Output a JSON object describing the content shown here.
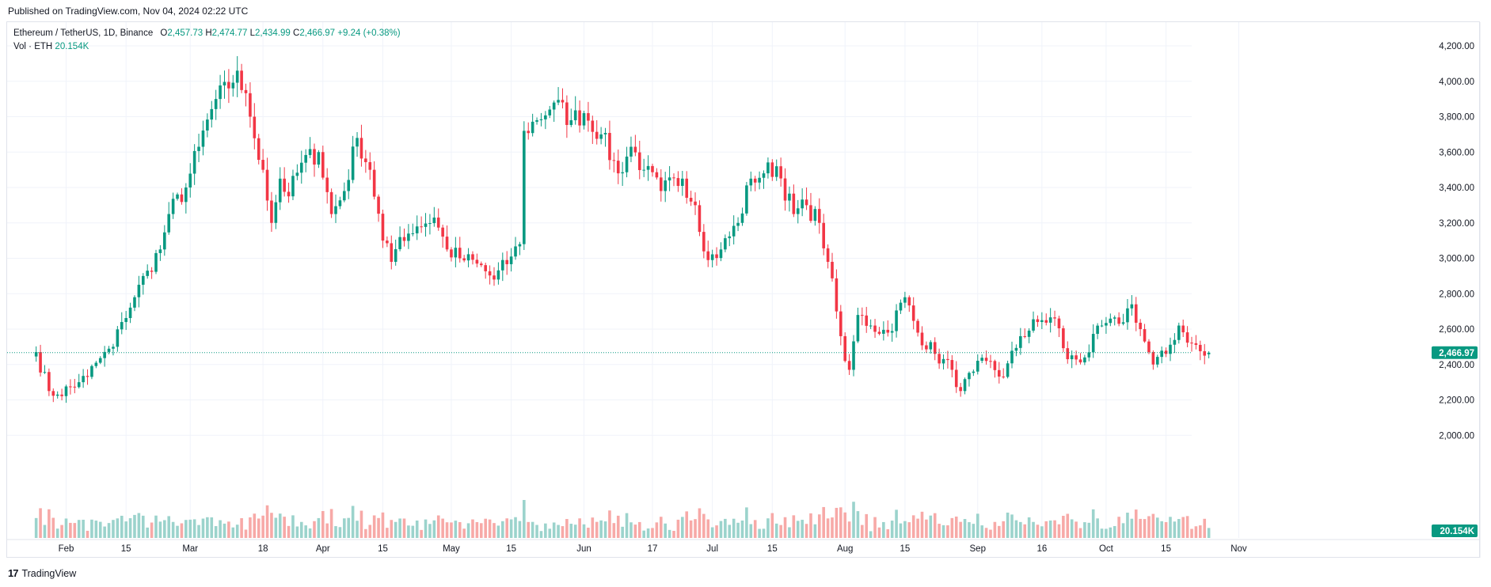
{
  "published": "Published on TradingView.com, Nov 04, 2024 02:22 UTC",
  "legend": {
    "symbol": "Ethereum / TetherUS, 1D, Binance",
    "o_label": "O",
    "o_value": "2,457.73",
    "h_label": "H",
    "h_value": "2,474.77",
    "l_label": "L",
    "l_value": "2,434.99",
    "c_label": "C",
    "c_value": "2,466.97",
    "change": "+9.24 (+0.38%)",
    "vol_label": "Vol · ETH",
    "vol_value": "20.154K"
  },
  "brand": {
    "logo_glyph": "17",
    "name": "TradingView"
  },
  "colors": {
    "up": "#089981",
    "down": "#f23645",
    "vol_up": "#9bd3cc",
    "vol_down": "#f7a9a7",
    "price_line": "#089981"
  },
  "chart_data": {
    "type": "candlestick",
    "pair": "ETH/USDT",
    "interval": "1D",
    "ylim": [
      1960,
      4260
    ],
    "y_ticks": [
      2000,
      2200,
      2400,
      2600,
      2800,
      3000,
      3200,
      3400,
      3600,
      3800,
      4000,
      4200
    ],
    "y_tick_labels": [
      "2,000.00",
      "2,200.00",
      "2,400.00",
      "2,600.00",
      "2,800.00",
      "3,000.00",
      "3,200.00",
      "3,400.00",
      "3,600.00",
      "3,800.00",
      "4,000.00",
      "4,200.00"
    ],
    "x_ticks": [
      {
        "day": 0,
        "label": "Feb"
      },
      {
        "day": 14,
        "label": "15"
      },
      {
        "day": 29,
        "label": "Mar"
      },
      {
        "day": 46,
        "label": "18"
      },
      {
        "day": 60,
        "label": "Apr"
      },
      {
        "day": 74,
        "label": "15"
      },
      {
        "day": 90,
        "label": "May"
      },
      {
        "day": 104,
        "label": "15"
      },
      {
        "day": 121,
        "label": "Jun"
      },
      {
        "day": 137,
        "label": "17"
      },
      {
        "day": 151,
        "label": "Jul"
      },
      {
        "day": 165,
        "label": "15"
      },
      {
        "day": 182,
        "label": "Aug"
      },
      {
        "day": 196,
        "label": "15"
      },
      {
        "day": 213,
        "label": "Sep"
      },
      {
        "day": 228,
        "label": "16"
      },
      {
        "day": 243,
        "label": "Oct"
      },
      {
        "day": 257,
        "label": "15"
      },
      {
        "day": 274,
        "label": "Nov"
      }
    ],
    "last_price": 2466.97,
    "last_price_label": "2,466.97",
    "last_volume_label": "20.154K",
    "anchors": [
      {
        "day": -7,
        "close": 2470
      },
      {
        "day": -4,
        "close": 2250
      },
      {
        "day": -2,
        "close": 2230
      },
      {
        "day": 3,
        "close": 2300
      },
      {
        "day": 5,
        "close": 2330
      },
      {
        "day": 7,
        "close": 2410
      },
      {
        "day": 11,
        "close": 2500
      },
      {
        "day": 13,
        "close": 2640
      },
      {
        "day": 16,
        "close": 2780
      },
      {
        "day": 19,
        "close": 2930
      },
      {
        "day": 22,
        "close": 3050
      },
      {
        "day": 24,
        "close": 3250
      },
      {
        "day": 28,
        "close": 3400
      },
      {
        "day": 31,
        "close": 3630
      },
      {
        "day": 35,
        "close": 3900
      },
      {
        "day": 38,
        "close": 3960
      },
      {
        "day": 40,
        "close": 4060
      },
      {
        "day": 43,
        "close": 3800
      },
      {
        "day": 46,
        "close": 3500
      },
      {
        "day": 48,
        "close": 3200
      },
      {
        "day": 50,
        "close": 3450
      },
      {
        "day": 52,
        "close": 3350
      },
      {
        "day": 55,
        "close": 3540
      },
      {
        "day": 59,
        "close": 3600
      },
      {
        "day": 62,
        "close": 3250
      },
      {
        "day": 65,
        "close": 3380
      },
      {
        "day": 68,
        "close": 3680
      },
      {
        "day": 71,
        "close": 3500
      },
      {
        "day": 74,
        "close": 3100
      },
      {
        "day": 76,
        "close": 2980
      },
      {
        "day": 78,
        "close": 3120
      },
      {
        "day": 82,
        "close": 3180
      },
      {
        "day": 86,
        "close": 3230
      },
      {
        "day": 89,
        "close": 3050
      },
      {
        "day": 92,
        "close": 3000
      },
      {
        "day": 96,
        "close": 2970
      },
      {
        "day": 100,
        "close": 2880
      },
      {
        "day": 104,
        "close": 3010
      },
      {
        "day": 106,
        "close": 3080
      },
      {
        "day": 107,
        "close": 3720
      },
      {
        "day": 110,
        "close": 3780
      },
      {
        "day": 114,
        "close": 3880
      },
      {
        "day": 118,
        "close": 3780
      },
      {
        "day": 121,
        "close": 3820
      },
      {
        "day": 125,
        "close": 3700
      },
      {
        "day": 129,
        "close": 3480
      },
      {
        "day": 132,
        "close": 3630
      },
      {
        "day": 135,
        "close": 3500
      },
      {
        "day": 139,
        "close": 3380
      },
      {
        "day": 144,
        "close": 3450
      },
      {
        "day": 147,
        "close": 3300
      },
      {
        "day": 150,
        "close": 2990
      },
      {
        "day": 153,
        "close": 3050
      },
      {
        "day": 157,
        "close": 3200
      },
      {
        "day": 160,
        "close": 3450
      },
      {
        "day": 163,
        "close": 3480
      },
      {
        "day": 166,
        "close": 3520
      },
      {
        "day": 170,
        "close": 3250
      },
      {
        "day": 173,
        "close": 3300
      },
      {
        "day": 176,
        "close": 3200
      },
      {
        "day": 178,
        "close": 2980
      },
      {
        "day": 180,
        "close": 2700
      },
      {
        "day": 181,
        "close": 2560
      },
      {
        "day": 182,
        "close": 2420
      },
      {
        "day": 183,
        "close": 2370
      },
      {
        "day": 185,
        "close": 2680
      },
      {
        "day": 188,
        "close": 2620
      },
      {
        "day": 192,
        "close": 2580
      },
      {
        "day": 196,
        "close": 2780
      },
      {
        "day": 199,
        "close": 2580
      },
      {
        "day": 203,
        "close": 2460
      },
      {
        "day": 207,
        "close": 2370
      },
      {
        "day": 209,
        "close": 2250
      },
      {
        "day": 212,
        "close": 2360
      },
      {
        "day": 215,
        "close": 2420
      },
      {
        "day": 219,
        "close": 2330
      },
      {
        "day": 223,
        "close": 2560
      },
      {
        "day": 227,
        "close": 2640
      },
      {
        "day": 231,
        "close": 2660
      },
      {
        "day": 234,
        "close": 2430
      },
      {
        "day": 238,
        "close": 2440
      },
      {
        "day": 242,
        "close": 2620
      },
      {
        "day": 246,
        "close": 2630
      },
      {
        "day": 249,
        "close": 2740
      },
      {
        "day": 252,
        "close": 2530
      },
      {
        "day": 254,
        "close": 2400
      },
      {
        "day": 257,
        "close": 2460
      },
      {
        "day": 260,
        "close": 2620
      },
      {
        "day": 263,
        "close": 2520
      },
      {
        "day": 266,
        "close": 2450
      },
      {
        "day": 267,
        "close": 2460
      }
    ]
  }
}
